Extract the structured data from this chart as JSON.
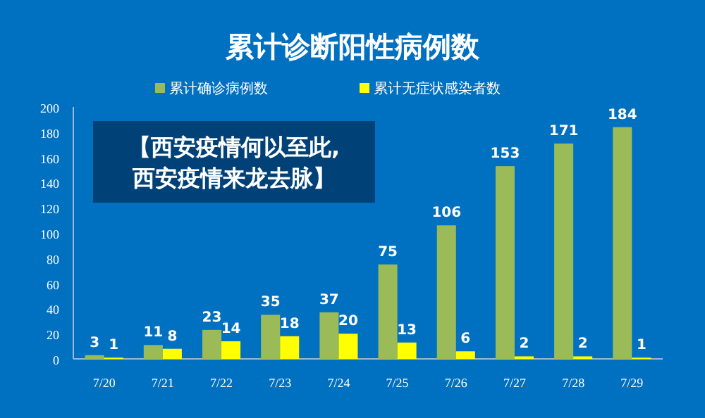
{
  "chart_data": {
    "type": "bar",
    "title": "累计诊断阳性病例数",
    "categories": [
      "7/20",
      "7/21",
      "7/22",
      "7/23",
      "7/24",
      "7/25",
      "7/26",
      "7/27",
      "7/28",
      "7/29"
    ],
    "series": [
      {
        "name": "累计确诊病例数",
        "color": "#9bbb59",
        "values": [
          3,
          11,
          23,
          35,
          37,
          75,
          106,
          153,
          171,
          184
        ]
      },
      {
        "name": "累计无症状感染者数",
        "color": "#ffff00",
        "values": [
          1,
          8,
          14,
          18,
          20,
          13,
          6,
          2,
          2,
          1
        ]
      }
    ],
    "ylim": [
      0,
      200
    ],
    "yticks": [
      0,
      20,
      40,
      60,
      80,
      100,
      120,
      140,
      160,
      180,
      200
    ],
    "data_labels": true,
    "legend": "top",
    "grid": false,
    "annotations": [
      "【西安疫情何以至此,西安疫情来龙去脉】"
    ]
  }
}
